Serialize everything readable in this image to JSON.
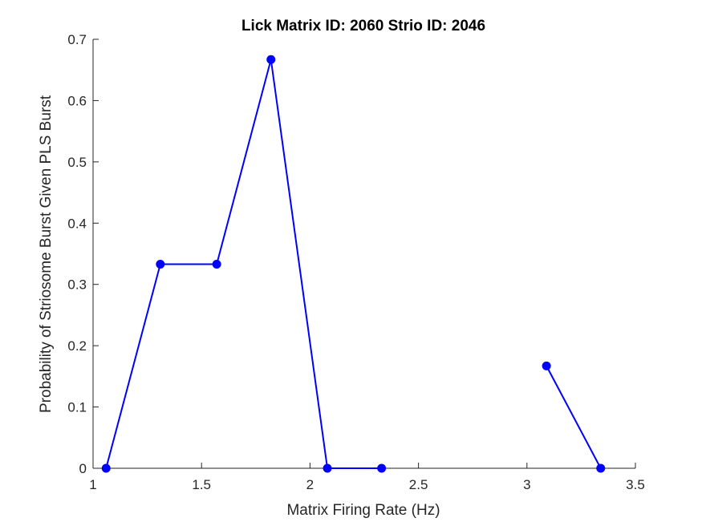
{
  "chart_data": {
    "type": "line",
    "title": "Lick Matrix ID: 2060 Strio ID: 2046",
    "xlabel": "Matrix Firing Rate (Hz)",
    "ylabel": "Probability of Striosome Burst Given PLS Burst",
    "xlim": [
      1,
      3.5
    ],
    "ylim": [
      0,
      0.7
    ],
    "xticks": [
      "1",
      "1.5",
      "2",
      "2.5",
      "3",
      "3.5"
    ],
    "yticks": [
      "0",
      "0.1",
      "0.2",
      "0.3",
      "0.4",
      "0.5",
      "0.6",
      "0.7"
    ],
    "grid": false,
    "series": [
      {
        "color": "#0000ff",
        "segments": [
          [
            [
              1.06,
              0
            ],
            [
              1.31,
              0.333
            ],
            [
              1.57,
              0.333
            ],
            [
              1.82,
              0.667
            ],
            [
              2.08,
              0
            ],
            [
              2.33,
              0
            ]
          ],
          [
            [
              3.09,
              0.167
            ],
            [
              3.34,
              0
            ]
          ]
        ]
      }
    ]
  }
}
